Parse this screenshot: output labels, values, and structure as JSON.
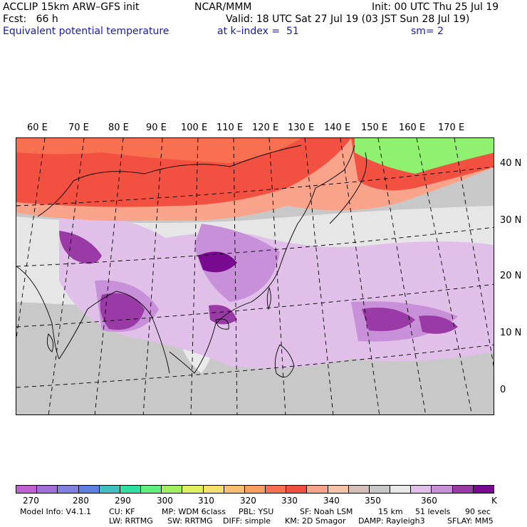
{
  "header": {
    "model_line": "ACCLIP 15km ARW–GFS init",
    "center": "NCAR/MMM",
    "init": "Init: 00 UTC Thu 25 Jul 19",
    "fcst": "Fcst:   66 h",
    "valid": "Valid: 18 UTC Sat 27 Jul 19 (03 JST Sun 28 Jul 19)",
    "field": "Equivalent potential temperature",
    "level": "at k–index =  51",
    "smooth": "sm= 2"
  },
  "map": {
    "lon_labels": [
      "60 E",
      "70 E",
      "80 E",
      "90 E",
      "100 E",
      "110 E",
      "120 E",
      "130 E",
      "140 E",
      "150 E",
      "160 E",
      "170 E"
    ],
    "lat_labels": [
      "40 N",
      "30 N",
      "20 N",
      "10 N",
      "0"
    ],
    "colors": {
      "ocean_gray": "#c8c8c8",
      "light_gray": "#eaeaea",
      "mauve_light": "#e0c0e8",
      "mauve_mid": "#c890d8",
      "purple": "#9a3aa6",
      "dark_purple": "#780a90",
      "red": "#f25040",
      "orange_red": "#f87050",
      "salmon": "#f9a48a",
      "peach": "#f9c0a8",
      "green": "#90f070"
    }
  },
  "colorbar": {
    "colors": [
      "#c060d0",
      "#a070d8",
      "#8080e0",
      "#6080e0",
      "#40c0c0",
      "#30e0a0",
      "#60f080",
      "#a0f060",
      "#e0f060",
      "#f8e070",
      "#f8c070",
      "#f8a060",
      "#f87050",
      "#f05040",
      "#f9a48a",
      "#f4c4a8",
      "#d4c0b8",
      "#c8c8c8",
      "#e8e8e8",
      "#e0c0e8",
      "#c890d8",
      "#9a3aa6",
      "#780a90"
    ],
    "labels": [
      "270",
      "280",
      "290",
      "300",
      "310",
      "320",
      "330",
      "340",
      "350",
      "360"
    ],
    "unit": "K"
  },
  "footer": {
    "line1": [
      "Model Info: V4.1.1",
      "CU: KF",
      "MP: WDM 6class",
      "PBL: YSU",
      "SF: Noah LSM",
      "15 km",
      "51 levels",
      "90 sec"
    ],
    "line2": [
      "LW: RRTMG",
      "SW: RRTMG",
      "DIFF: simple",
      "KM: 2D Smagor",
      "DAMP: Rayleigh3",
      "SFLAY: MM5"
    ]
  }
}
